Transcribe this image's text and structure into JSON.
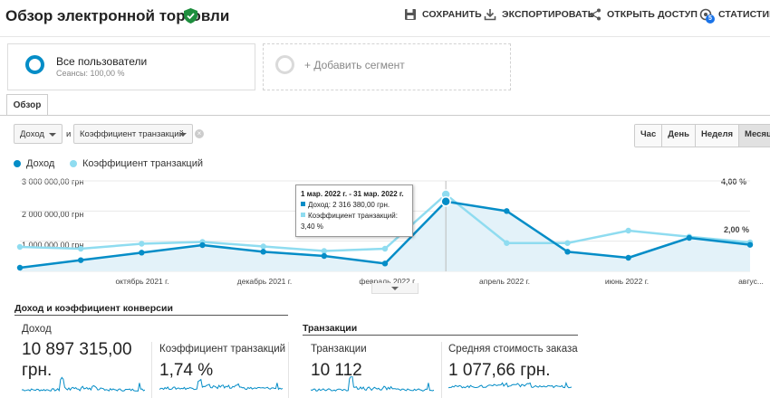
{
  "header": {
    "title": "Обзор электронной торговли",
    "save": "СОХРАНИТЬ",
    "export": "ЭКСПОРТИРОВАТЬ",
    "share": "ОТКРЫТЬ ДОСТУП",
    "insights": "СТАТИСТИКА",
    "insights_badge": "5"
  },
  "segments": {
    "active_name": "Все пользователи",
    "active_sub": "Сеансы: 100,00 %",
    "add": "+ Добавить сегмент"
  },
  "tab": "Обзор",
  "selectors": {
    "metric1": "Доход",
    "and": "и",
    "metric2": "Коэффициент транзакций"
  },
  "time_buttons": [
    "Час",
    "День",
    "Неделя",
    "Месяц"
  ],
  "time_active": "Месяц",
  "legend": {
    "series1": "Доход",
    "series2": "Коэффициент транзакций"
  },
  "axis": {
    "y_left": [
      "3 000 000,00 грн",
      "2 000 000,00 грн",
      "1 000 000,00 грн"
    ],
    "y_right": [
      "4,00 %",
      "2,00 %"
    ],
    "x": [
      "октябрь 2021 г.",
      "декабрь 2021 г.",
      "февраль 2022 г.",
      "апрель 2022 г.",
      "июнь 2022 г.",
      "авгус..."
    ]
  },
  "tooltip": {
    "date": "1 мар. 2022 г. - 31 мар. 2022 г.",
    "revenue": "Доход: 2 316 380,00 грн.",
    "rate": "Коэффициент транзакций: 3,40 %"
  },
  "colors": {
    "revenue": "#058dc7",
    "rate": "#8fdcf0",
    "fill": "#e3f2f9"
  },
  "chart_data": {
    "type": "line",
    "title": "Доход и Коэффициент транзакций",
    "x": [
      "авг 2021",
      "сен 2021",
      "окт 2021",
      "ноя 2021",
      "дек 2021",
      "янв 2022",
      "фев 2022",
      "мар 2022",
      "апр 2022",
      "май 2022",
      "июн 2022",
      "июл 2022",
      "авг 2022"
    ],
    "series": [
      {
        "name": "Доход",
        "axis": "left",
        "unit": "грн",
        "values": [
          120000,
          370000,
          620000,
          870000,
          650000,
          510000,
          260000,
          2316380,
          2000000,
          650000,
          450000,
          1110000,
          880000
        ]
      },
      {
        "name": "Коэффициент транзакций",
        "axis": "left-right",
        "unit": "%",
        "values": [
          1.08,
          1.0,
          1.22,
          1.3,
          1.1,
          0.9,
          1.0,
          3.4,
          1.25,
          1.25,
          1.8,
          1.53,
          1.28
        ]
      }
    ],
    "ylim_left": [
      0,
      3000000
    ],
    "ylim_right": [
      0,
      4
    ]
  },
  "metrics": {
    "section1_title": "Доход и коэффициент конверсии",
    "section2_title": "Транзакции",
    "revenue_label": "Доход",
    "revenue_value_line1": "10 897 315,00",
    "revenue_value_line2": "грн.",
    "rate_label": "Коэффициент транзакций",
    "rate_value": "1,74 %",
    "tx_label": "Транзакции",
    "tx_value": "10 112",
    "aov_label": "Средняя стоимость заказа",
    "aov_value": "1 077,66 грн."
  }
}
